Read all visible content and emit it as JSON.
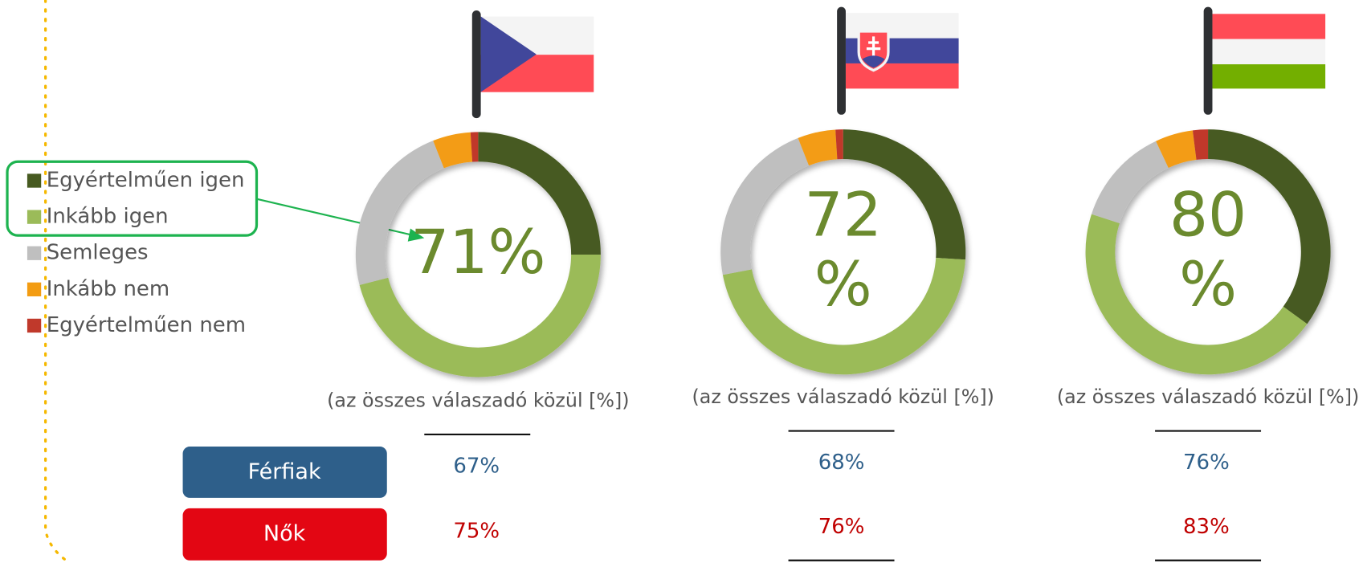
{
  "chart_data": [
    {
      "type": "donut",
      "categories": [
        "Egyértelműen igen",
        "Inkább igen",
        "Semleges",
        "Inkább nem",
        "Egyértelműen nem"
      ],
      "values": [
        25,
        46,
        23,
        5,
        1
      ],
      "colors": [
        "#465a20",
        "#9bbb59",
        "#bfbfbf",
        "#f39c12",
        "#c0392b"
      ],
      "center_label": [
        "71%"
      ],
      "subtitle": "(az összes válaszadó közül [%])",
      "groups": [
        "Férfiak",
        "Nők"
      ],
      "group_values": [
        67,
        75
      ],
      "group_value_labels": [
        "67%",
        "75%"
      ]
    },
    {
      "type": "donut",
      "categories": [
        "Egyértelműen igen",
        "Inkább igen",
        "Semleges",
        "Inkább nem",
        "Egyértelműen nem"
      ],
      "values": [
        26,
        46,
        22,
        5,
        1
      ],
      "colors": [
        "#465a20",
        "#9bbb59",
        "#bfbfbf",
        "#f39c12",
        "#c0392b"
      ],
      "center_label": [
        "72",
        "%"
      ],
      "subtitle": "(az összes válaszadó közül [%])",
      "groups": [
        "Férfiak",
        "Nők"
      ],
      "group_values": [
        68,
        76
      ],
      "group_value_labels": [
        "68%",
        "76%"
      ]
    },
    {
      "type": "donut",
      "categories": [
        "Egyértelműen igen",
        "Inkább igen",
        "Semleges",
        "Inkább nem",
        "Egyértelműen nem"
      ],
      "values": [
        35,
        45,
        13,
        5,
        2
      ],
      "colors": [
        "#465a20",
        "#9bbb59",
        "#bfbfbf",
        "#f39c12",
        "#c0392b"
      ],
      "center_label": [
        "80",
        "%"
      ],
      "subtitle": "(az összes válaszadó közül [%])",
      "groups": [
        "Férfiak",
        "Nők"
      ],
      "group_values": [
        76,
        83
      ],
      "group_value_labels": [
        "76%",
        "83%"
      ]
    }
  ]
}
